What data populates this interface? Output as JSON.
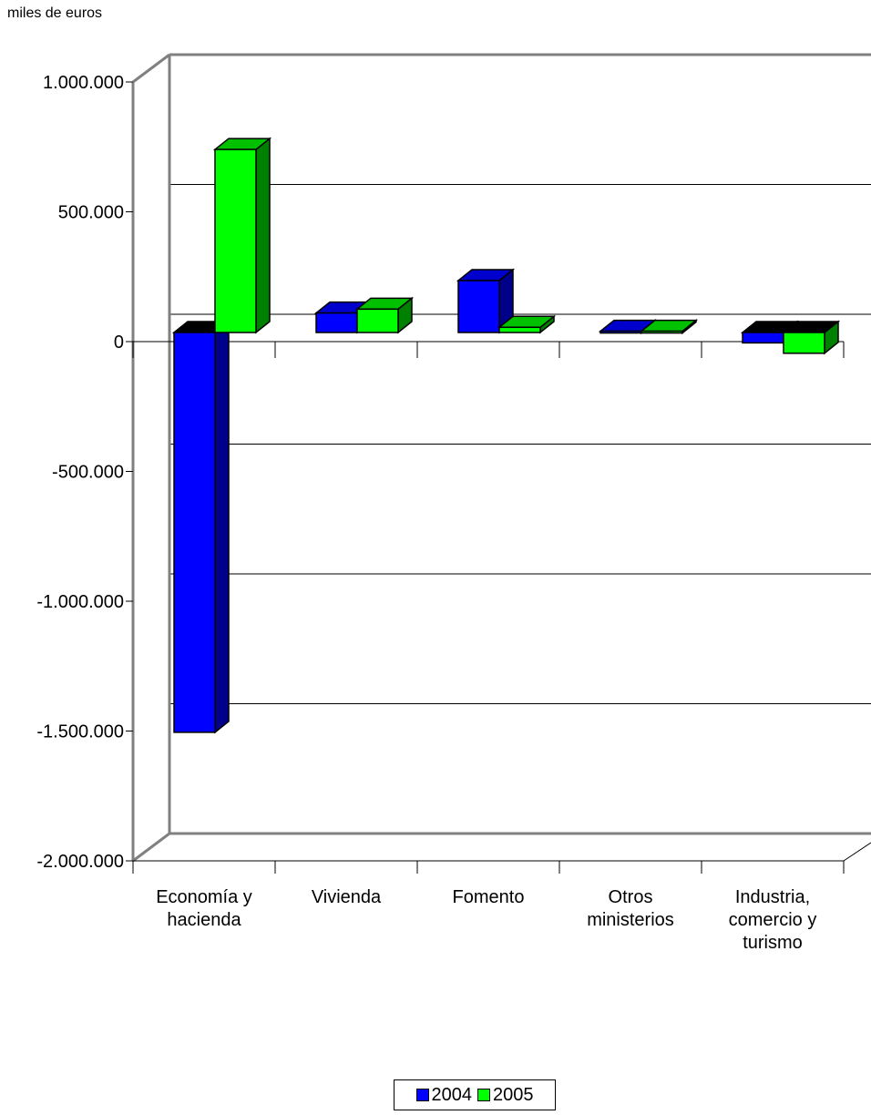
{
  "unit_label": "miles de euros",
  "legend": [
    {
      "name": "2004",
      "color": "#0000ff"
    },
    {
      "name": "2005",
      "color": "#00ff00"
    }
  ],
  "chart_data": {
    "type": "bar",
    "title": "",
    "xlabel": "",
    "ylabel": "miles de euros",
    "ylim": [
      -2000000,
      1000000
    ],
    "yticks": [
      1000000,
      500000,
      0,
      -500000,
      -1000000,
      -1500000,
      -2000000
    ],
    "ytick_labels": [
      "1.000.000",
      "500.000",
      "0",
      "-500.000",
      "-1.000.000",
      "-1.500.000",
      "-2.000.000"
    ],
    "categories": [
      [
        "Economía y",
        "hacienda"
      ],
      [
        "Vivienda"
      ],
      [
        "Fomento"
      ],
      [
        "Otros",
        "ministerios"
      ],
      [
        "Industria,",
        "comercio y",
        "turismo"
      ]
    ],
    "series": [
      {
        "name": "2004",
        "color": "#0000ff",
        "values": [
          -1540000,
          75000,
          200000,
          5000,
          -40000
        ]
      },
      {
        "name": "2005",
        "color": "#00ff00",
        "values": [
          705000,
          90000,
          20000,
          5000,
          -80000
        ]
      }
    ],
    "grid": true,
    "legend_position": "bottom"
  }
}
